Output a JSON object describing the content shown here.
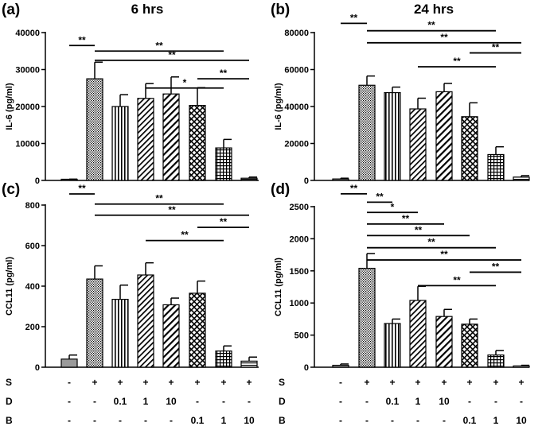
{
  "chart_data": [
    {
      "panel_label": "(a)",
      "title": "6 hrs",
      "type": "bar",
      "ylabel": "IL-6 (pg/ml)",
      "ylim": [
        0,
        40000
      ],
      "yticks": [
        0,
        10000,
        20000,
        30000,
        40000
      ],
      "ytick_labels": [
        "0",
        "10000",
        "20000",
        "30000",
        "40000"
      ],
      "values": [
        200,
        27500,
        20000,
        22200,
        23400,
        20300,
        8800,
        600
      ],
      "errors": [
        150,
        4500,
        3200,
        4000,
        4600,
        4800,
        2300,
        300
      ],
      "significance": [
        {
          "from": 0,
          "to": 1,
          "label": "**",
          "y": 36500
        },
        {
          "from": 1,
          "to": 6,
          "label": "**",
          "y": 35000
        },
        {
          "from": 1,
          "to": 7,
          "label": "**",
          "y": 32500
        },
        {
          "from": 5,
          "to": 7,
          "label": "**",
          "y": 27500
        },
        {
          "from": 3,
          "to": 6,
          "label": "*",
          "y": 25000
        }
      ]
    },
    {
      "panel_label": "(b)",
      "title": "24 hrs",
      "type": "bar",
      "ylabel": "IL-6 (pg/ml)",
      "ylim": [
        0,
        80000
      ],
      "yticks": [
        0,
        20000,
        40000,
        60000,
        80000
      ],
      "ytick_labels": [
        "0",
        "20000",
        "40000",
        "60000",
        "80000"
      ],
      "values": [
        800,
        51500,
        47500,
        38700,
        48000,
        34500,
        14000,
        1800
      ],
      "errors": [
        400,
        5000,
        3000,
        5800,
        4500,
        7500,
        4200,
        800
      ],
      "significance": [
        {
          "from": 0,
          "to": 1,
          "label": "**",
          "y": 85000
        },
        {
          "from": 1,
          "to": 6,
          "label": "**",
          "y": 81000
        },
        {
          "from": 1,
          "to": 7,
          "label": "**",
          "y": 74500
        },
        {
          "from": 5,
          "to": 7,
          "label": "**",
          "y": 69000
        },
        {
          "from": 3,
          "to": 6,
          "label": "**",
          "y": 61500
        }
      ]
    },
    {
      "panel_label": "(c)",
      "title": "",
      "type": "bar",
      "ylabel": "CCL11 (pg/ml)",
      "ylim": [
        0,
        800
      ],
      "yticks": [
        0,
        200,
        400,
        600,
        800
      ],
      "ytick_labels": [
        "0",
        "200",
        "400",
        "600",
        "800"
      ],
      "values": [
        40,
        435,
        335,
        455,
        308,
        365,
        80,
        30
      ],
      "errors": [
        20,
        65,
        70,
        60,
        33,
        60,
        25,
        20
      ],
      "significance": [
        {
          "from": 0,
          "to": 1,
          "label": "**",
          "y": 855
        },
        {
          "from": 1,
          "to": 6,
          "label": "**",
          "y": 805
        },
        {
          "from": 1,
          "to": 7,
          "label": "**",
          "y": 750
        },
        {
          "from": 5,
          "to": 7,
          "label": "**",
          "y": 690
        },
        {
          "from": 3,
          "to": 6,
          "label": "**",
          "y": 625
        }
      ]
    },
    {
      "panel_label": "(d)",
      "title": "",
      "type": "bar",
      "ylabel": "CCL11 (pg/ml)",
      "ylim": [
        0,
        2500
      ],
      "yticks": [
        0,
        500,
        1000,
        1500,
        2000,
        2500
      ],
      "ytick_labels": [
        "0",
        "500",
        "1000",
        "1500",
        "2000",
        "2500"
      ],
      "values": [
        30,
        1540,
        680,
        1040,
        790,
        670,
        190,
        20
      ],
      "errors": [
        20,
        230,
        70,
        220,
        110,
        80,
        70,
        10
      ],
      "significance": [
        {
          "from": 0,
          "to": 1,
          "label": "**",
          "y": 2700
        },
        {
          "from": 1,
          "to": 2,
          "label": "**",
          "y": 2570
        },
        {
          "from": 1,
          "to": 3,
          "label": "*",
          "y": 2410
        },
        {
          "from": 1,
          "to": 4,
          "label": "**",
          "y": 2230
        },
        {
          "from": 1,
          "to": 5,
          "label": "**",
          "y": 2050
        },
        {
          "from": 1,
          "to": 6,
          "label": "**",
          "y": 1860
        },
        {
          "from": 1,
          "to": 7,
          "label": "**",
          "y": 1670
        },
        {
          "from": 5,
          "to": 7,
          "label": "**",
          "y": 1480
        },
        {
          "from": 3,
          "to": 6,
          "label": "**",
          "y": 1270
        }
      ]
    }
  ],
  "conditions": {
    "rows": [
      {
        "name": "S",
        "values": [
          "-",
          "+",
          "+",
          "+",
          "+",
          "+",
          "+",
          "+"
        ]
      },
      {
        "name": "D",
        "values": [
          "-",
          "-",
          "0.1",
          "1",
          "10",
          "-",
          "-",
          "-"
        ]
      },
      {
        "name": "B",
        "values": [
          "-",
          "-",
          "-",
          "-",
          "-",
          "0.1",
          "1",
          "10"
        ]
      }
    ]
  },
  "bar_patterns": [
    "solid",
    "dots",
    "vlines",
    "diag",
    "diagwide",
    "crossdiag",
    "grid",
    "hlines"
  ],
  "colors": {
    "solid_fill": "#9a9a9a",
    "ink": "#000000",
    "background": "#ffffff"
  }
}
